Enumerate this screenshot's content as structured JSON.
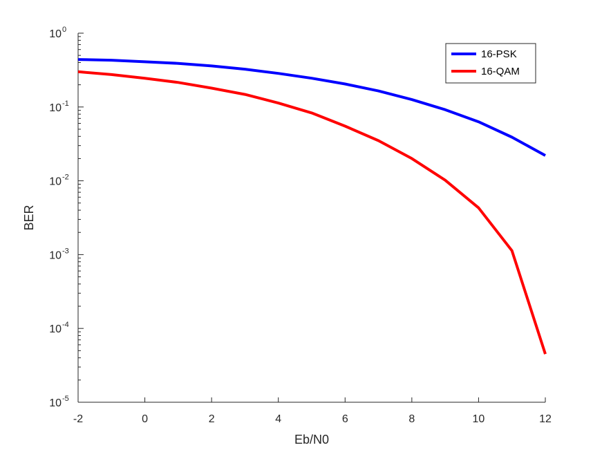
{
  "chart_data": {
    "type": "line",
    "xlabel": "Eb/N0",
    "ylabel": "BER",
    "xlim": [
      -2,
      12
    ],
    "ylim": [
      1e-05,
      1
    ],
    "yscale": "log",
    "grid": false,
    "legend_position": "top-right",
    "x_ticks": [
      -2,
      0,
      2,
      4,
      6,
      8,
      10,
      12
    ],
    "x_tick_labels": [
      "-2",
      "0",
      "2",
      "4",
      "6",
      "8",
      "10",
      "12"
    ],
    "y_ticks": [
      {
        "value": 1e-05,
        "base": "10",
        "exp": "-5"
      },
      {
        "value": 0.0001,
        "base": "10",
        "exp": "-4"
      },
      {
        "value": 0.001,
        "base": "10",
        "exp": "-3"
      },
      {
        "value": 0.01,
        "base": "10",
        "exp": "-2"
      },
      {
        "value": 0.1,
        "base": "10",
        "exp": "-1"
      },
      {
        "value": 1,
        "base": "10",
        "exp": "0"
      }
    ],
    "x": [
      -2,
      -1,
      0,
      1,
      2,
      3,
      4,
      5,
      6,
      7,
      8,
      9,
      10,
      11,
      12
    ],
    "series": [
      {
        "name": "16-PSK",
        "color": "#0000ff",
        "values": [
          0.44,
          0.43,
          0.41,
          0.39,
          0.36,
          0.325,
          0.285,
          0.245,
          0.205,
          0.165,
          0.126,
          0.092,
          0.063,
          0.039,
          0.022
        ]
      },
      {
        "name": "16-QAM",
        "color": "#ff0000",
        "values": [
          0.3,
          0.275,
          0.245,
          0.215,
          0.18,
          0.148,
          0.113,
          0.083,
          0.055,
          0.035,
          0.02,
          0.0102,
          0.0043,
          0.00113,
          4.5e-05
        ]
      }
    ]
  }
}
